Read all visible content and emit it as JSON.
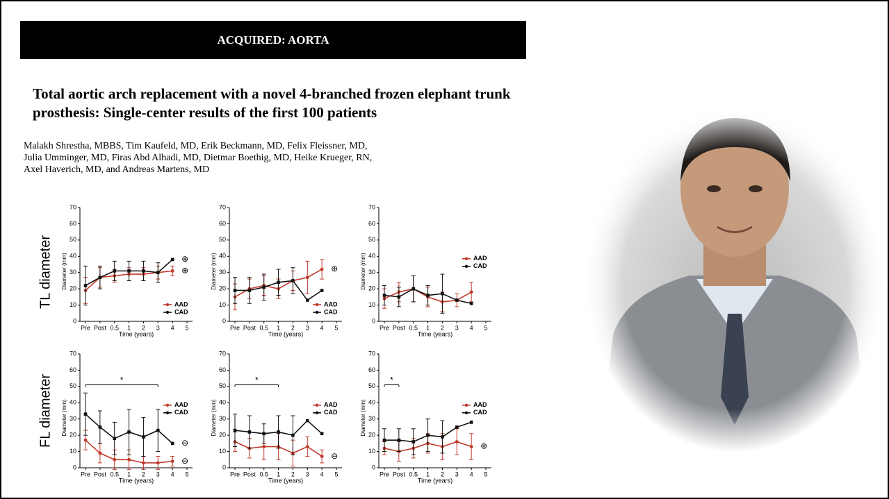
{
  "header": "ACQUIRED: AORTA",
  "title": "Total aortic arch replacement with a novel 4-branched frozen elephant trunk prosthesis: Single-center results of the first 100 patients",
  "authors": [
    "Malakh Shrestha, MBBS, Tim Kaufeld, MD, Erik Beckmann, MD, Felix Fleissner, MD,",
    "Julia Umminger, MD, Firas Abd Alhadi, MD, Dietmar Boethig, MD, Heike Krueger, RN,",
    "Axel Haverich, MD, and Andreas Martens, MD"
  ],
  "row_labels": [
    "TL diameter",
    "FL diameter"
  ],
  "chart_data": [
    {
      "type": "line",
      "x_label": "Time (years)",
      "y_label": "Diameter (mm)",
      "categories": [
        "Pre",
        "Post",
        "0.5",
        "1",
        "2",
        "3",
        "4",
        "5"
      ],
      "ylim": [
        0,
        70
      ],
      "yticks": [
        0,
        10,
        20,
        30,
        40,
        50,
        60,
        70
      ],
      "legend": "lower right",
      "series": [
        {
          "name": "AAD",
          "color": "#c0392b",
          "values": [
            19,
            27,
            28,
            29,
            29,
            30,
            31,
            null
          ],
          "errors": [
            8,
            6,
            4,
            4,
            4,
            4,
            3,
            null
          ],
          "marker_label": "⊕"
        },
        {
          "name": "CAD",
          "color": "#111111",
          "values": [
            22,
            27,
            31,
            31,
            31,
            30,
            38,
            null
          ],
          "errors": [
            12,
            7,
            6,
            6,
            6,
            6,
            null,
            null
          ],
          "marker_label": "⊕"
        }
      ]
    },
    {
      "type": "line",
      "x_label": "Time (years)",
      "y_label": "Diameter (mm)",
      "categories": [
        "Pre",
        "Post",
        "0.5",
        "1",
        "2",
        "3",
        "4",
        "5"
      ],
      "ylim": [
        0,
        70
      ],
      "yticks": [
        0,
        10,
        20,
        30,
        40,
        50,
        60,
        70
      ],
      "legend": "lower right",
      "series": [
        {
          "name": "AAD",
          "color": "#c0392b",
          "values": [
            15,
            20,
            22,
            20,
            25,
            27,
            32,
            null
          ],
          "errors": [
            8,
            6,
            6,
            6,
            6,
            10,
            6,
            null
          ],
          "marker_label": "⊕"
        },
        {
          "name": "CAD",
          "color": "#111111",
          "values": [
            19,
            19,
            21,
            24,
            25,
            13,
            19,
            null
          ],
          "errors": [
            8,
            8,
            8,
            8,
            8,
            null,
            null,
            null
          ]
        }
      ]
    },
    {
      "type": "line",
      "x_label": "Time (years)",
      "y_label": "Diameter (mm)",
      "categories": [
        "Pre",
        "Post",
        "0.5",
        "1",
        "2",
        "3",
        "4",
        "5"
      ],
      "ylim": [
        0,
        70
      ],
      "yticks": [
        0,
        10,
        20,
        30,
        40,
        50,
        60,
        70
      ],
      "legend": "upper right",
      "series": [
        {
          "name": "AAD",
          "color": "#c0392b",
          "values": [
            14,
            18,
            20,
            15,
            12,
            13,
            18,
            null
          ],
          "errors": [
            6,
            6,
            8,
            6,
            6,
            4,
            6,
            null
          ]
        },
        {
          "name": "CAD",
          "color": "#111111",
          "values": [
            16,
            15,
            20,
            16,
            17,
            13,
            11,
            null
          ],
          "errors": [
            6,
            6,
            8,
            6,
            12,
            null,
            null,
            null
          ]
        }
      ]
    },
    {
      "type": "line",
      "x_label": "Time (years)",
      "y_label": "Diameter (mm)",
      "categories": [
        "Pre",
        "Post",
        "0.5",
        "1",
        "2",
        "3",
        "4",
        "5"
      ],
      "ylim": [
        0,
        70
      ],
      "yticks": [
        0,
        10,
        20,
        30,
        40,
        50,
        60,
        70
      ],
      "legend": "upper right",
      "significance": {
        "label": "*",
        "from": "Pre",
        "to": "3",
        "y": 51
      },
      "series": [
        {
          "name": "AAD",
          "color": "#c0392b",
          "values": [
            17,
            9,
            5,
            5,
            3,
            3,
            4,
            null
          ],
          "errors": [
            6,
            6,
            6,
            6,
            4,
            4,
            3,
            null
          ],
          "marker_label": "⊖"
        },
        {
          "name": "CAD",
          "color": "#111111",
          "values": [
            33,
            25,
            18,
            22,
            19,
            23,
            15,
            null
          ],
          "errors": [
            13,
            10,
            10,
            14,
            12,
            13,
            null,
            null
          ],
          "marker_label": "⊖"
        }
      ]
    },
    {
      "type": "line",
      "x_label": "Time (years)",
      "y_label": "Diameter (mm)",
      "categories": [
        "Pre",
        "Post",
        "0.5",
        "1",
        "2",
        "3",
        "4",
        "5"
      ],
      "ylim": [
        0,
        70
      ],
      "yticks": [
        0,
        10,
        20,
        30,
        40,
        50,
        60,
        70
      ],
      "legend": "upper right",
      "significance": {
        "label": "*",
        "from": "Pre",
        "to": "1",
        "y": 51
      },
      "series": [
        {
          "name": "AAD",
          "color": "#c0392b",
          "values": [
            16,
            12,
            13,
            13,
            9,
            13,
            7,
            null
          ],
          "errors": [
            6,
            6,
            8,
            8,
            8,
            6,
            4,
            null
          ],
          "marker_label": "⊖"
        },
        {
          "name": "CAD",
          "color": "#111111",
          "values": [
            23,
            22,
            21,
            22,
            20,
            29,
            21,
            null
          ],
          "errors": [
            10,
            10,
            6,
            10,
            12,
            null,
            null,
            null
          ]
        }
      ]
    },
    {
      "type": "line",
      "x_label": "Time (years)",
      "y_label": "Diameter (mm)",
      "categories": [
        "Pre",
        "Post",
        "0.5",
        "1",
        "2",
        "3",
        "4",
        "5"
      ],
      "ylim": [
        0,
        70
      ],
      "yticks": [
        0,
        10,
        20,
        30,
        40,
        50,
        60,
        70
      ],
      "legend": "upper right",
      "significance": {
        "label": "*",
        "from": "Pre",
        "to": "Post",
        "y": 51
      },
      "series": [
        {
          "name": "AAD",
          "color": "#c0392b",
          "values": [
            12,
            10,
            12,
            15,
            13,
            16,
            13,
            null
          ],
          "errors": [
            4,
            6,
            6,
            6,
            8,
            8,
            8,
            null
          ],
          "marker_label": "⊕"
        },
        {
          "name": "CAD",
          "color": "#111111",
          "values": [
            17,
            17,
            16,
            20,
            19,
            25,
            28,
            null
          ],
          "errors": [
            7,
            7,
            8,
            10,
            10,
            null,
            null,
            null
          ]
        }
      ]
    }
  ]
}
